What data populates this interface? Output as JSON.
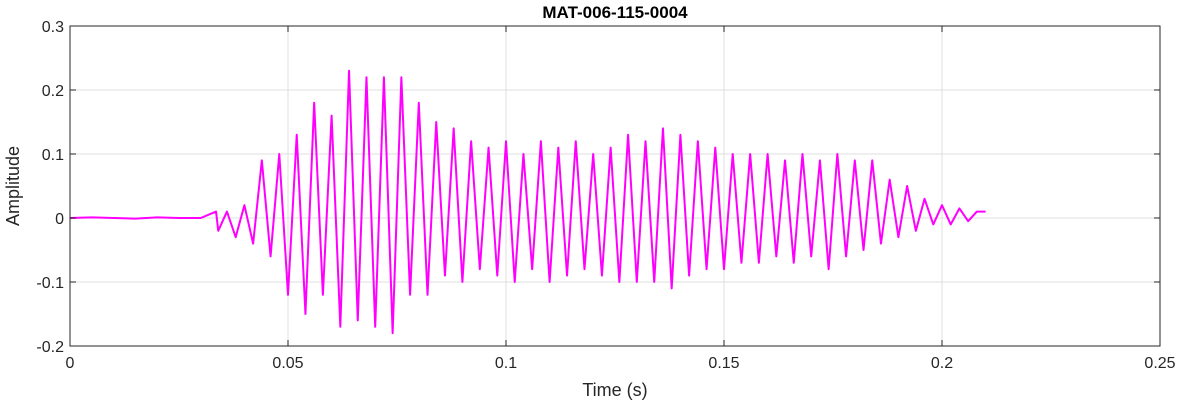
{
  "chart_data": {
    "type": "line",
    "title": "MAT-006-115-0004",
    "xlabel": "Time (s)",
    "ylabel": "Amplitude",
    "xlim": [
      0,
      0.25
    ],
    "ylim": [
      -0.2,
      0.3
    ],
    "xticks": [
      0,
      0.05,
      0.1,
      0.15,
      0.2,
      0.25
    ],
    "xtick_labels": [
      "0",
      "0.05",
      "0.1",
      "0.15",
      "0.2",
      "0.25"
    ],
    "yticks": [
      -0.2,
      -0.1,
      0,
      0.1,
      0.2,
      0.3
    ],
    "ytick_labels": [
      "-0.2",
      "-0.1",
      "0",
      "0.1",
      "0.2",
      "0.3"
    ],
    "grid": true,
    "series": [
      {
        "color": "#ff00ff",
        "x": [
          0,
          0.005,
          0.01,
          0.015,
          0.02,
          0.025,
          0.03,
          0.0335,
          0.034,
          0.036,
          0.038,
          0.04,
          0.042,
          0.044,
          0.046,
          0.048,
          0.05,
          0.052,
          0.054,
          0.056,
          0.058,
          0.06,
          0.062,
          0.064,
          0.066,
          0.068,
          0.07,
          0.072,
          0.074,
          0.076,
          0.078,
          0.08,
          0.082,
          0.084,
          0.086,
          0.088,
          0.09,
          0.092,
          0.094,
          0.096,
          0.098,
          0.1,
          0.102,
          0.104,
          0.106,
          0.108,
          0.11,
          0.112,
          0.114,
          0.116,
          0.118,
          0.12,
          0.122,
          0.124,
          0.126,
          0.128,
          0.13,
          0.132,
          0.134,
          0.136,
          0.138,
          0.14,
          0.142,
          0.144,
          0.146,
          0.148,
          0.15,
          0.152,
          0.154,
          0.156,
          0.158,
          0.16,
          0.162,
          0.164,
          0.166,
          0.168,
          0.17,
          0.172,
          0.174,
          0.176,
          0.178,
          0.18,
          0.182,
          0.184,
          0.186,
          0.188,
          0.19,
          0.192,
          0.194,
          0.196,
          0.198,
          0.2,
          0.202,
          0.204,
          0.206,
          0.208,
          0.21
        ],
        "y": [
          0,
          0.001,
          0,
          -0.001,
          0.001,
          0,
          0,
          0.01,
          -0.02,
          0.01,
          -0.03,
          0.02,
          -0.04,
          0.09,
          -0.06,
          0.1,
          -0.12,
          0.13,
          -0.15,
          0.18,
          -0.12,
          0.16,
          -0.17,
          0.23,
          -0.16,
          0.22,
          -0.17,
          0.22,
          -0.18,
          0.22,
          -0.12,
          0.18,
          -0.12,
          0.15,
          -0.09,
          0.14,
          -0.1,
          0.12,
          -0.08,
          0.11,
          -0.09,
          0.12,
          -0.1,
          0.1,
          -0.08,
          0.12,
          -0.1,
          0.11,
          -0.09,
          0.12,
          -0.08,
          0.1,
          -0.09,
          0.11,
          -0.1,
          0.13,
          -0.1,
          0.12,
          -0.1,
          0.14,
          -0.11,
          0.13,
          -0.09,
          0.12,
          -0.08,
          0.11,
          -0.08,
          0.1,
          -0.07,
          0.1,
          -0.07,
          0.1,
          -0.06,
          0.09,
          -0.07,
          0.1,
          -0.06,
          0.09,
          -0.08,
          0.1,
          -0.06,
          0.09,
          -0.05,
          0.09,
          -0.04,
          0.06,
          -0.03,
          0.05,
          -0.02,
          0.03,
          -0.01,
          0.02,
          -0.01,
          0.015,
          -0.005,
          0.01,
          0.01
        ]
      }
    ]
  }
}
